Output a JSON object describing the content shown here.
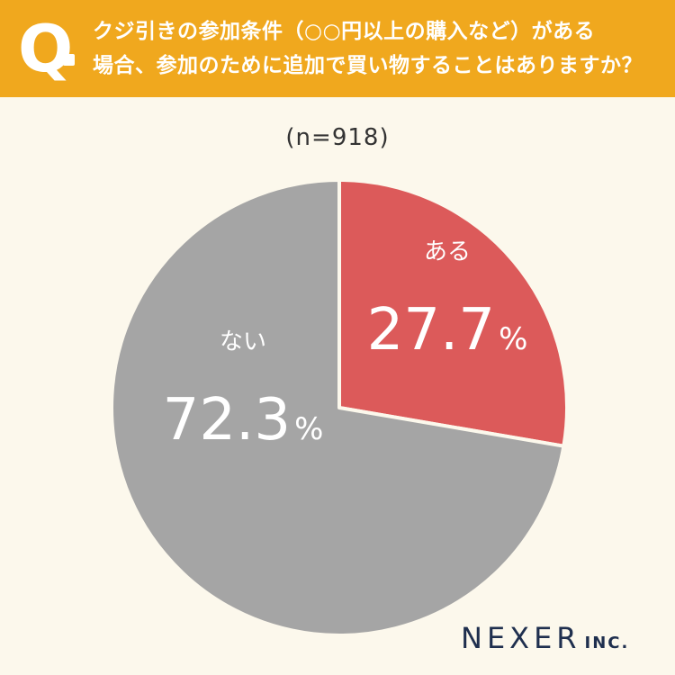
{
  "header": {
    "q_label": "Q",
    "question_line1": "クジ引きの参加条件（○○円以上の購入など）がある",
    "question_line2": "場合、参加のために追加で買い物することはありますか？"
  },
  "sample_size": "(n=918)",
  "chart_data": {
    "type": "pie",
    "start_angle_deg": 0,
    "direction": "clockwise",
    "slices": [
      {
        "label": "ある",
        "value": 27.7,
        "value_text": "27.7",
        "unit": "%",
        "color": "#dc5a5a"
      },
      {
        "label": "ない",
        "value": 72.3,
        "value_text": "72.3",
        "unit": "%",
        "color": "#a5a5a5"
      }
    ],
    "separator_color": "#fcf8ec"
  },
  "logo": {
    "main": "NEXER",
    "sub": "INC."
  }
}
